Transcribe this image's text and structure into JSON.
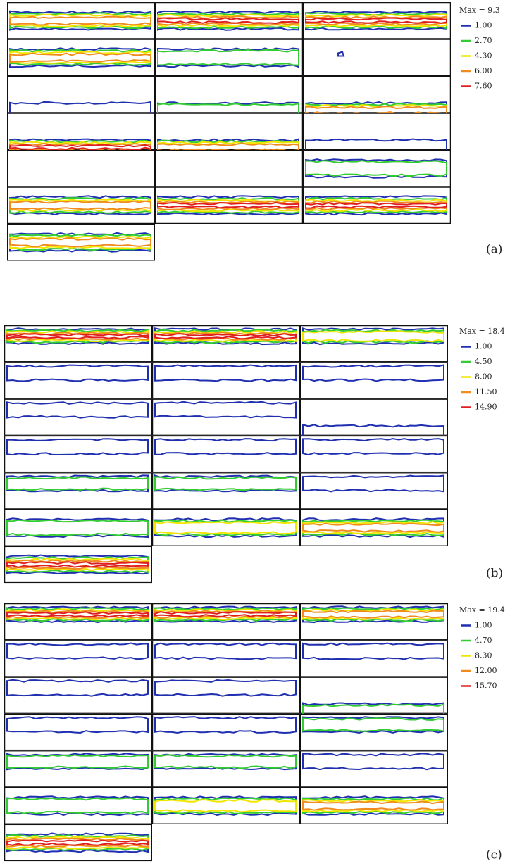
{
  "panels": [
    {
      "label": "(a)",
      "max": "Max = 9.3",
      "levels": [
        "1.00",
        "2.70",
        "4.30",
        "6.00",
        "7.60"
      ]
    },
    {
      "label": "(b)",
      "max": "Max = 18.4",
      "levels": [
        "1.00",
        "4.50",
        "8.00",
        "11.50",
        "14.90"
      ]
    },
    {
      "label": "(c)",
      "max": "Max = 19.4",
      "levels": [
        "1.00",
        "4.70",
        "8.30",
        "12.00",
        "15.70"
      ]
    }
  ]
}
